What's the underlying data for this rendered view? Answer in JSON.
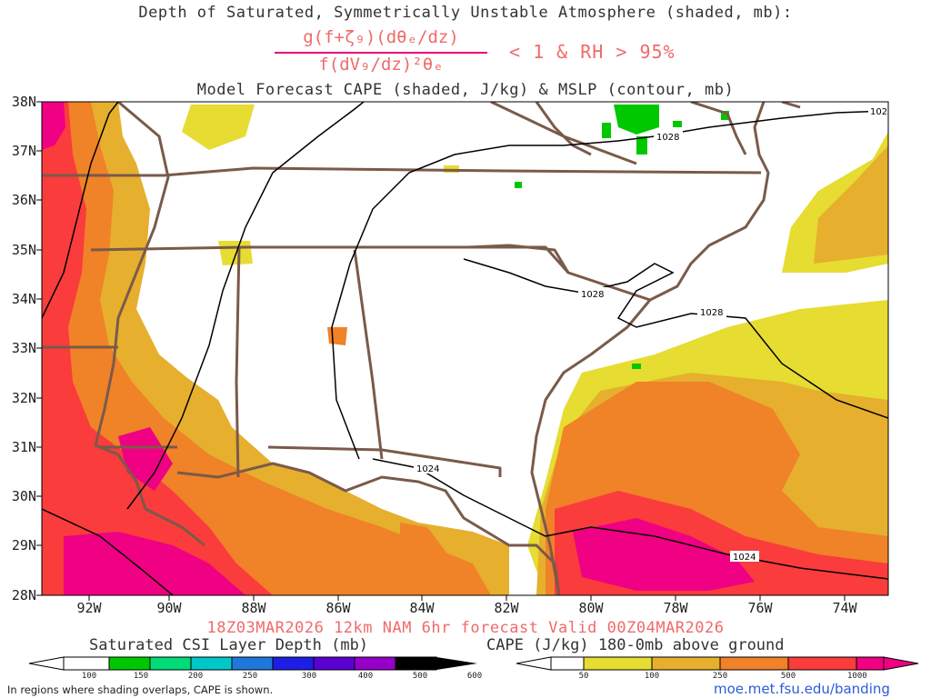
{
  "title_line1": "Depth of Saturated, Symmetrically Unstable Atmosphere (shaded, mb):",
  "formula_numerator": "g(f+ζ₉)(dθₑ/dz)",
  "formula_denominator": "f(dV₉/dz)²θₑ",
  "formula_condition": "< 1 & RH > 95%",
  "title_line3": "Model Forecast CAPE (shaded, J/kg) & MSLP (contour, mb)",
  "map": {
    "lat_labels": [
      "38N",
      "37N",
      "36N",
      "35N",
      "34N",
      "33N",
      "32N",
      "31N",
      "30N",
      "29N",
      "28N"
    ],
    "lon_labels": [
      "92W",
      "90W",
      "88W",
      "86W",
      "84W",
      "82W",
      "80W",
      "78W",
      "76W",
      "74W"
    ],
    "isobar_labels": [
      "1028",
      "1028",
      "1028",
      "1024",
      "1024",
      "102"
    ]
  },
  "valid_line": "18Z03MAR2026 12km NAM 6hr forecast Valid 00Z04MAR2026",
  "csi_colorbar": {
    "title": "Saturated CSI Layer Depth (mb)",
    "ticks": [
      "100",
      "150",
      "200",
      "250",
      "300",
      "400",
      "500",
      "600"
    ],
    "colors": [
      "#00c800",
      "#00dc78",
      "#00c8c8",
      "#1e78dc",
      "#1e1ee6",
      "#5a00d2",
      "#9600c8",
      "#000000"
    ]
  },
  "cape_colorbar": {
    "title": "CAPE (J/kg) 180-0mb above ground",
    "ticks": [
      "50",
      "100",
      "250",
      "500",
      "1000"
    ],
    "colors": [
      "#e6dc32",
      "#e6af2d",
      "#f08228",
      "#fa3c3c",
      "#f00082"
    ]
  },
  "footnote": "In regions where shading overlaps, CAPE is shown.",
  "url": "moe.met.fsu.edu/banding"
}
